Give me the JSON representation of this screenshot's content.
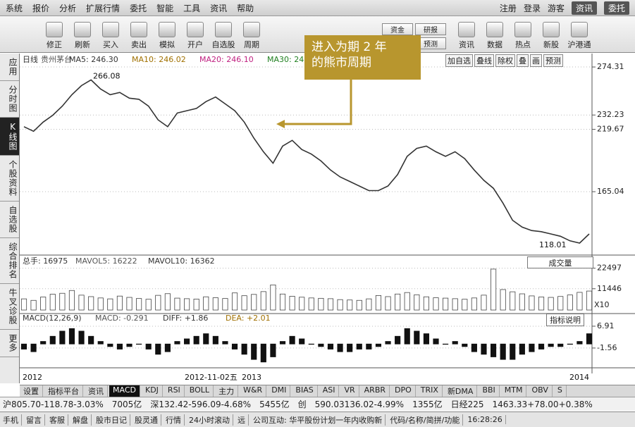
{
  "menu": {
    "left": [
      "系统",
      "报价",
      "分析",
      "扩展行情",
      "委托",
      "智能",
      "工具",
      "资讯",
      "帮助"
    ],
    "right": [
      "注册",
      "登录",
      "游客"
    ],
    "buttons": [
      "资讯",
      "委托"
    ]
  },
  "toolbar": {
    "buttons": [
      "修正",
      "刷新",
      "买入",
      "卖出",
      "模拟",
      "开户",
      "自选股",
      "周期"
    ],
    "group": [
      "资金",
      "研报",
      "BBD",
      "预测"
    ],
    "right_buttons": [
      "资讯",
      "数据",
      "热点",
      "新股",
      "沪港通"
    ]
  },
  "sidebar": [
    "应用",
    "分时图",
    "K线图",
    "个股资料",
    "自选股",
    "综合排名",
    "牛叉诊股",
    "更多"
  ],
  "chart_buttons": [
    "加自选",
    "叠线",
    "除权",
    "叠",
    "画",
    "预测"
  ],
  "annotation": [
    "进入为期 2 年",
    "的熊市周期"
  ],
  "chart_data": [
    {
      "type": "line",
      "legend_texts": [
        "日线",
        "贵州茅台",
        "MA5: 246.30",
        "MA10: 246.02",
        "MA20: 246.10",
        "MA30: 24"
      ],
      "color": "#333333",
      "values": [
        222,
        218,
        226,
        232,
        240,
        250,
        258,
        263,
        255,
        250,
        252,
        247,
        246,
        240,
        228,
        222,
        234,
        236,
        238,
        244,
        248,
        242,
        236,
        226,
        212,
        200,
        190,
        205,
        210,
        202,
        198,
        192,
        184,
        178,
        174,
        170,
        166,
        166,
        170,
        180,
        196,
        203,
        205,
        200,
        196,
        200,
        194,
        184,
        175,
        168,
        155,
        140,
        134,
        131,
        130,
        128,
        126,
        122,
        120,
        128
      ],
      "ylim": [
        109.5,
        276.2
      ],
      "yticks": [
        274.31,
        232.23,
        219.67,
        165.04
      ],
      "high_label": 266.08,
      "low_label": 118.01
    },
    {
      "type": "bar",
      "legend_texts": [
        "总手: 16975",
        "MAVOL5: 16222",
        "MAVOL10: 16362"
      ],
      "color": "#444444",
      "values": [
        6000,
        5200,
        7000,
        8500,
        9000,
        10500,
        8000,
        7200,
        6500,
        6000,
        7500,
        6800,
        6200,
        5800,
        7900,
        8800,
        6400,
        6100,
        5900,
        7100,
        6600,
        6200,
        9200,
        7700,
        8400,
        9900,
        13500,
        8600,
        7400,
        6900,
        6500,
        6300,
        6100,
        5600,
        5400,
        5200,
        6000,
        7800,
        7200,
        8600,
        9400,
        8200,
        7100,
        6600,
        6400,
        6100,
        5800,
        6500,
        8000,
        22000,
        11000,
        9800,
        8700,
        7600,
        7000,
        6800,
        7300,
        8100,
        9500,
        10200
      ],
      "ylim": [
        0,
        28400
      ],
      "yticks": [
        22497,
        11446
      ],
      "unit_label": "X10",
      "selector": "成交量"
    },
    {
      "type": "bar",
      "legend_texts": [
        "MACD(12,26,9)",
        "MACD: -0.291",
        "DIFF: +1.86",
        "DEA: +2.01"
      ],
      "color": "#111111",
      "values": [
        -2,
        -3,
        1,
        3,
        5,
        6,
        5,
        3,
        1,
        -1,
        -2,
        -1,
        0,
        -2,
        -4,
        -3,
        1,
        2,
        3,
        4,
        3,
        1,
        -2,
        -4,
        -6,
        -7,
        -5,
        1,
        3,
        2,
        0,
        -1,
        -2,
        -3,
        -3,
        -2,
        -2,
        -1,
        1,
        3,
        6,
        5,
        4,
        2,
        0,
        1,
        -1,
        -3,
        -4,
        -5,
        -6,
        -6,
        -4,
        -3,
        -2,
        -1,
        -1,
        0,
        1,
        4
      ],
      "ylim": [
        -8.7,
        11
      ],
      "yticks": [
        6.91,
        -1.56
      ],
      "button": "指标说明"
    }
  ],
  "date_axis": [
    "2012",
    "2012-11-02五",
    "2013",
    "2014"
  ],
  "tabs": [
    "设置",
    "指标平台",
    "资讯",
    "MACD",
    "KDJ",
    "RSI",
    "BOLL",
    "主力",
    "W&R",
    "DMI",
    "BIAS",
    "ASI",
    "VR",
    "ARBR",
    "DPO",
    "TRIX",
    "新DMA",
    "BBI",
    "MTM",
    "OBV",
    "S"
  ],
  "status": [
    "沪805.70-118.78-3.03%",
    "7005亿",
    "深132.42-596.09-4.68%",
    "5455亿",
    "创",
    "590.03136.02-4.99%",
    "1355亿",
    "日经225",
    "1463.33+78.00+0.38%"
  ],
  "bottom": [
    "手机",
    "留言",
    "客服",
    "解盘",
    "股市日记",
    "股灵通",
    "行情",
    "24小时滚动",
    "远",
    "公司互动: 华平股份计划一年内收购新",
    "代码/名称/简拼/功能",
    "16:28:26"
  ]
}
